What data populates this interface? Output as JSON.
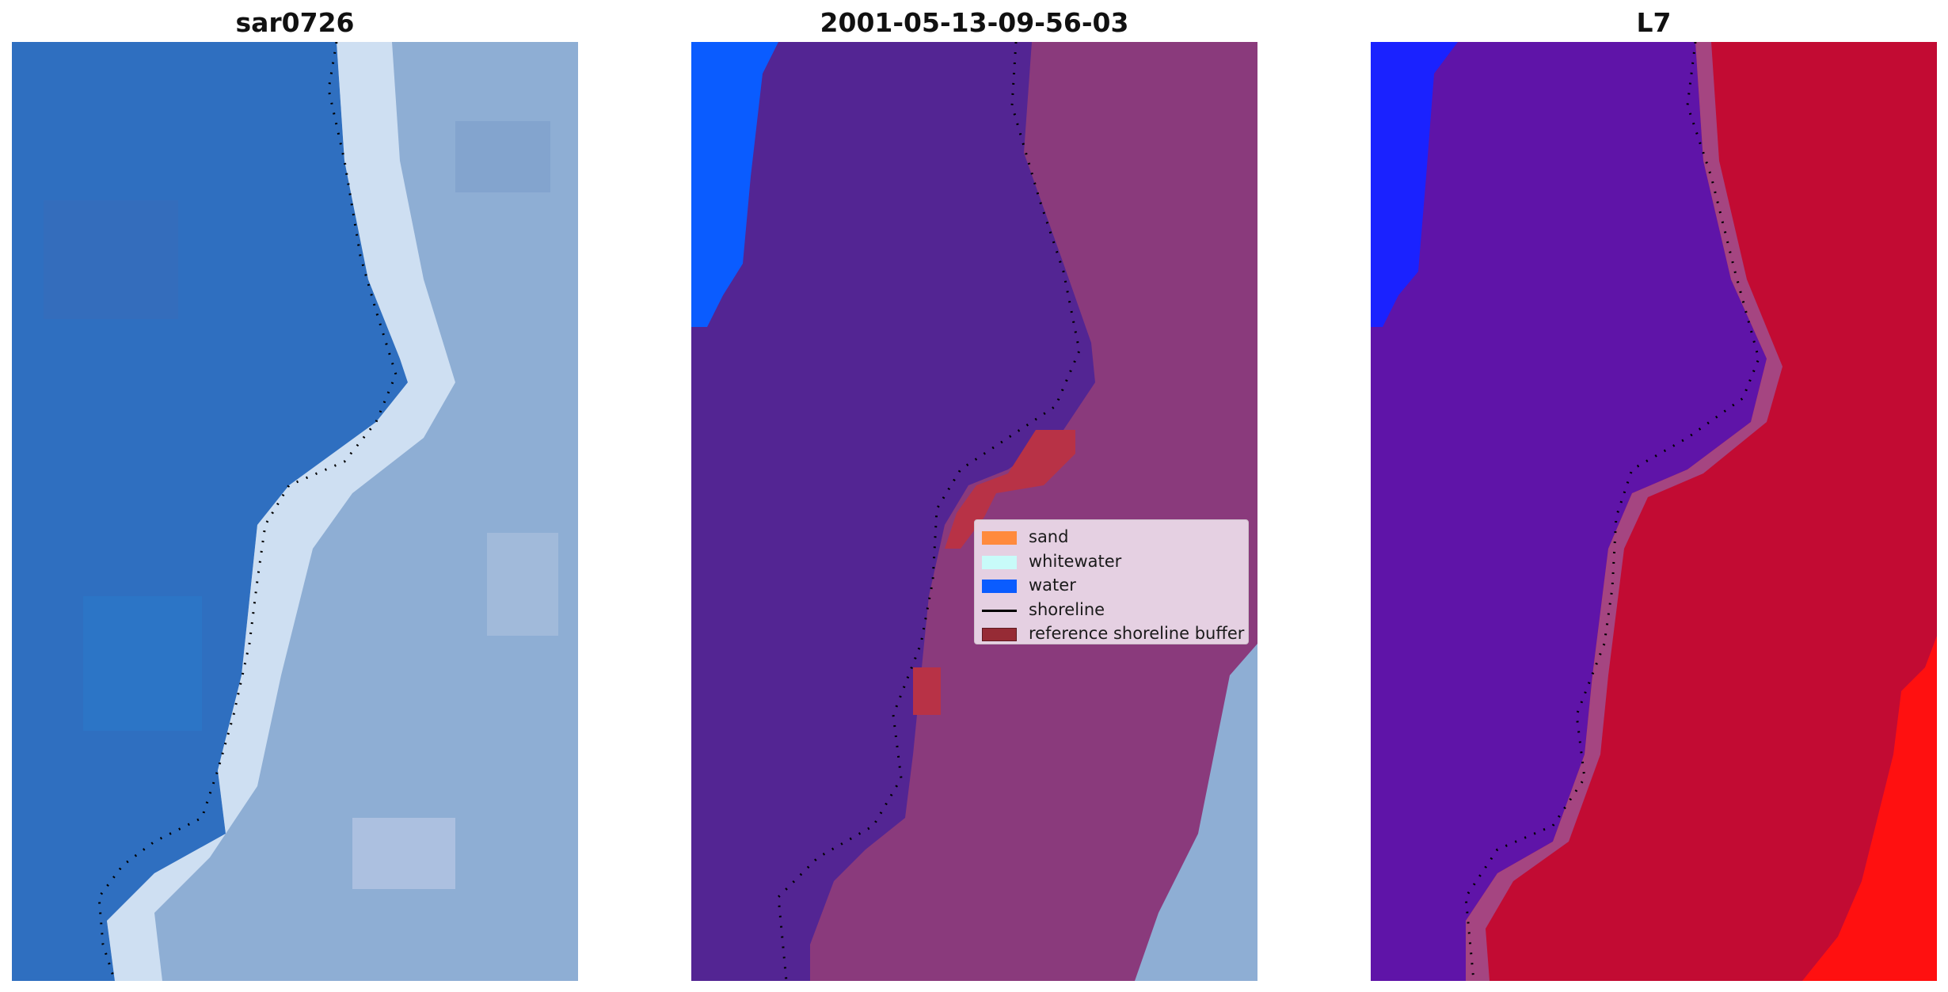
{
  "panels": [
    {
      "title": "sar0726"
    },
    {
      "title": "2001-05-13-09-56-03"
    },
    {
      "title": "L7"
    }
  ],
  "legend": {
    "items": [
      {
        "label": "sand",
        "kind": "patch",
        "color": "#ff8a3d"
      },
      {
        "label": "whitewater",
        "kind": "patch",
        "color": "#c8fbf9"
      },
      {
        "label": "water",
        "kind": "patch",
        "color": "#0a5cff"
      },
      {
        "label": "shoreline",
        "kind": "line",
        "color": "#000000"
      },
      {
        "label": "reference shoreline buffer",
        "kind": "patch",
        "color": "#962b35"
      }
    ]
  },
  "colors": {
    "rgb_water": "#2f6fc0",
    "rgb_beach": "#d5e4f5",
    "rgb_land": "#8eaed4",
    "classified_water": "#532593",
    "classified_land": "#8a3a7c",
    "classified_sea": "#0a5cff",
    "buffer": "#b83246",
    "index_water": "#5f14a8",
    "index_land": "#c20b33",
    "index_high": "#ff1010",
    "index_sea": "#1a22ff"
  }
}
